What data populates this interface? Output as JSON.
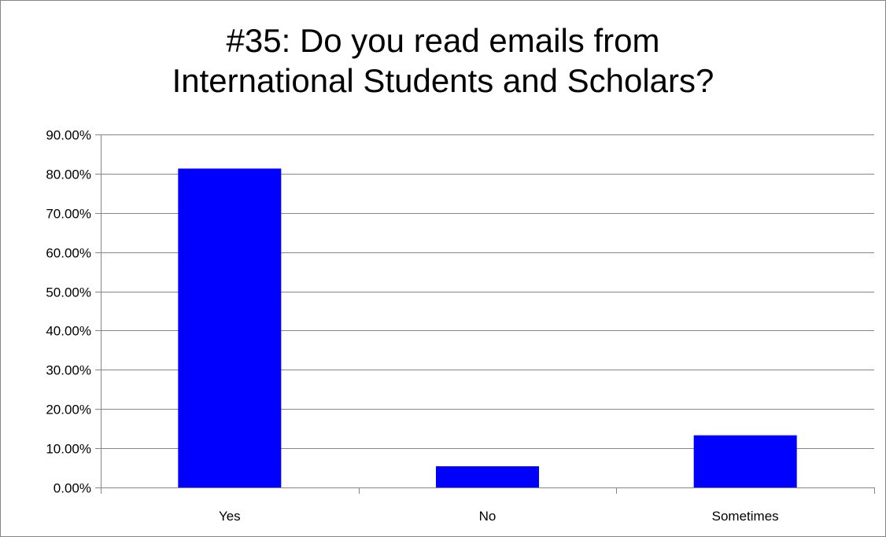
{
  "chart_data": {
    "type": "bar",
    "title": "#35: Do you read emails from\nInternational Students and Scholars?",
    "xlabel": "",
    "ylabel": "",
    "categories": [
      "Yes",
      "No",
      "Sometimes"
    ],
    "values": [
      81.3,
      5.4,
      13.3
    ],
    "ylim": [
      0,
      90
    ],
    "yticks": [
      0,
      10,
      20,
      30,
      40,
      50,
      60,
      70,
      80,
      90
    ],
    "ytick_labels": [
      "0.00%",
      "10.00%",
      "20.00%",
      "30.00%",
      "40.00%",
      "50.00%",
      "60.00%",
      "70.00%",
      "80.00%",
      "90.00%"
    ],
    "grid": true,
    "legend": "none",
    "bar_color": "#0000FF",
    "grid_color": "#868686"
  }
}
